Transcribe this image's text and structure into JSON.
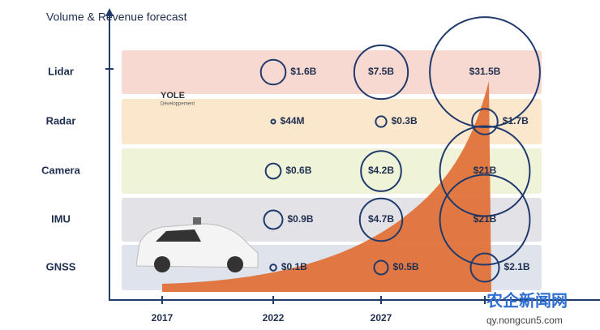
{
  "chart_data": {
    "type": "bubble",
    "title": "Volume & Revenue forecast",
    "categories": [
      "2017",
      "2022",
      "2027",
      null
    ],
    "series": [
      {
        "name": "Lidar",
        "color": "#f7d9d1",
        "values": [
          null,
          1.6,
          7.5,
          31.5
        ],
        "value_labels": [
          null,
          "$1.6B",
          "$7.5B",
          "$31.5B"
        ]
      },
      {
        "name": "Radar",
        "color": "#fbe8cc",
        "values": [
          null,
          0.044,
          0.3,
          1.7
        ],
        "value_labels": [
          null,
          "$44M",
          "$0.3B",
          "$1.7B"
        ]
      },
      {
        "name": "Camera",
        "color": "#eff3d8",
        "values": [
          null,
          0.6,
          4.2,
          21
        ],
        "value_labels": [
          null,
          "$0.6B",
          "$4.2B",
          "$21B"
        ]
      },
      {
        "name": "IMU",
        "color": "#e3e3e7",
        "values": [
          null,
          0.9,
          4.7,
          21
        ],
        "value_labels": [
          null,
          "$0.9B",
          "$4.7B",
          "$21B"
        ]
      },
      {
        "name": "GNSS",
        "color": "#dfe3eb",
        "values": [
          null,
          0.1,
          0.5,
          2.1
        ],
        "value_labels": [
          null,
          "$0.1B",
          "$0.5B",
          "$2.1B"
        ]
      }
    ],
    "bubble_color": "#1f3a6b",
    "logo": "YOLE",
    "logo_sub": "Développement",
    "watermark": "农企新闻网",
    "watermark_url": "qy.nongcun5.com"
  }
}
